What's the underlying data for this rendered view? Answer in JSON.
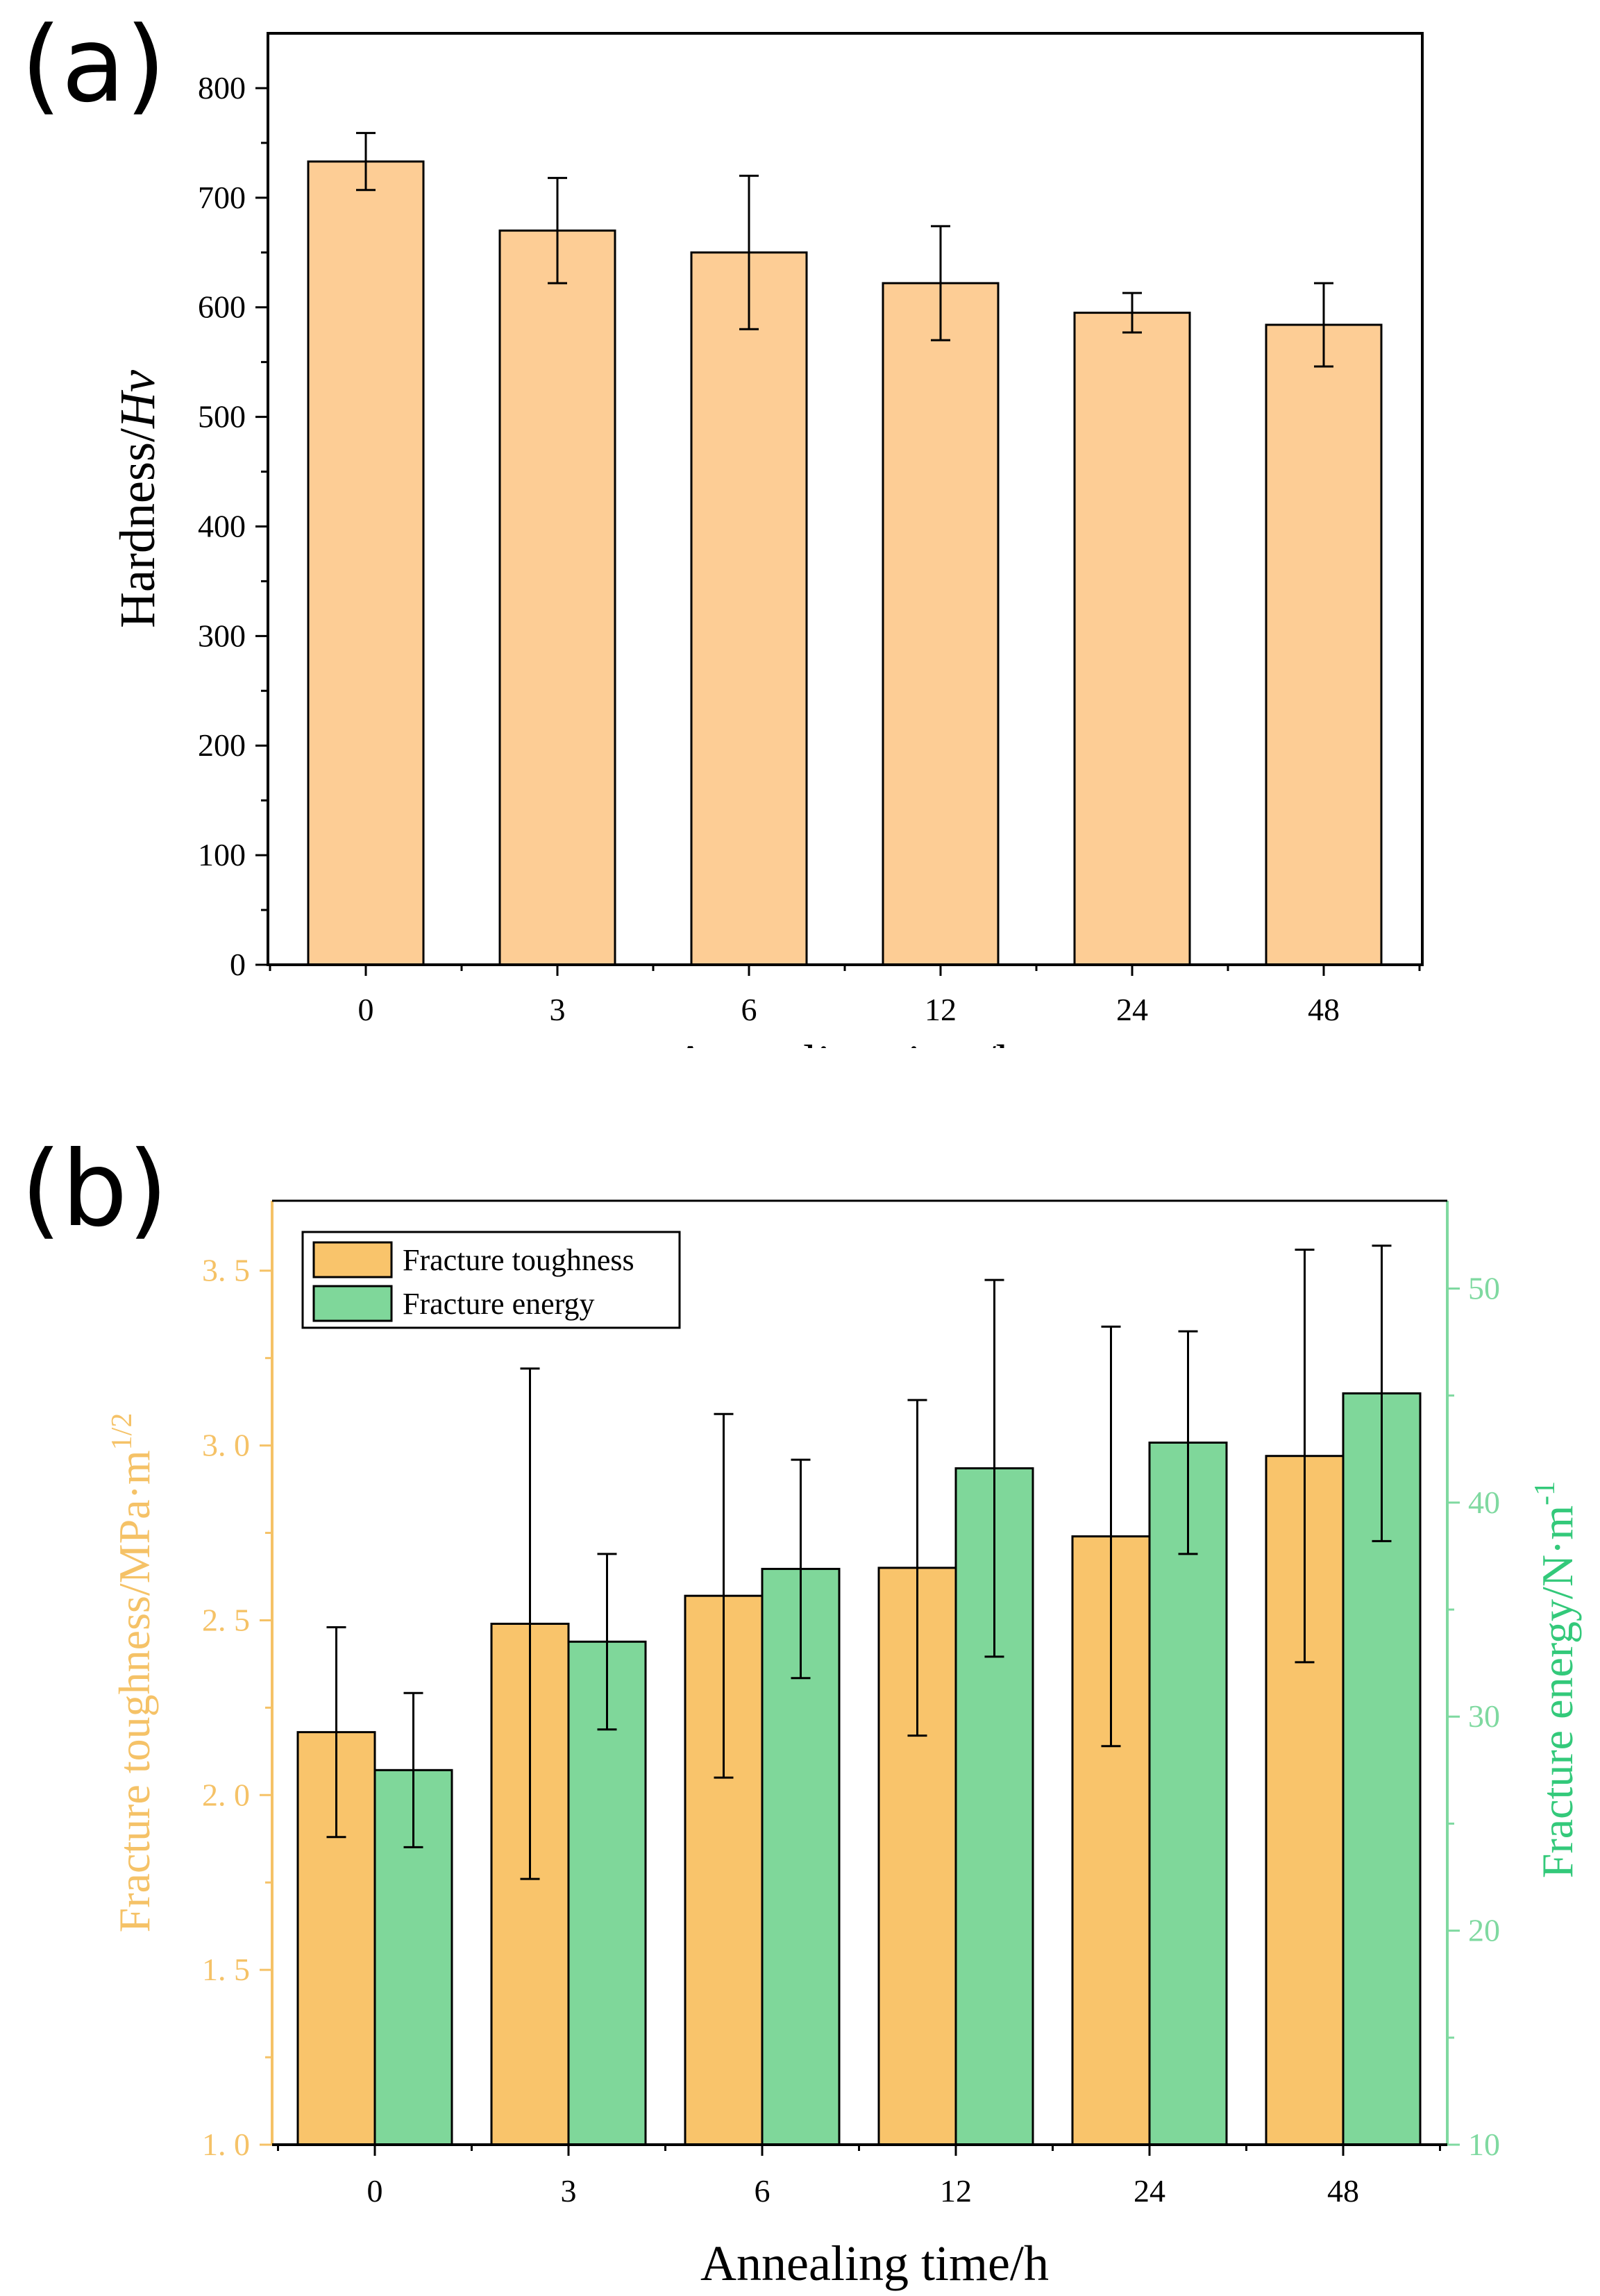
{
  "chart_data": [
    {
      "panel": "(a)",
      "type": "bar",
      "categories": [
        "0",
        "3",
        "6",
        "12",
        "24",
        "48"
      ],
      "values": [
        733,
        670,
        650,
        622,
        595,
        584
      ],
      "errors": [
        26,
        48,
        70,
        52,
        18,
        38
      ],
      "ylabel_main": "Hardness/",
      "ylabel_italic": "Hv",
      "xlabel": "Annealing time/h",
      "ylim": [
        0,
        850
      ],
      "yticks": [
        "0",
        "100",
        "200",
        "300",
        "400",
        "500",
        "600",
        "700",
        "800"
      ],
      "bar_color": "#fdcd95"
    },
    {
      "panel": "(b)",
      "type": "bar",
      "categories": [
        "0",
        "3",
        "6",
        "12",
        "24",
        "48"
      ],
      "xlabel": "Annealing time/h",
      "series": [
        {
          "name": "Fracture toughness",
          "axis": "left",
          "values": [
            2.18,
            2.49,
            2.57,
            2.65,
            2.74,
            2.97
          ],
          "errors": [
            0.3,
            0.73,
            0.52,
            0.48,
            0.6,
            0.59
          ],
          "color": "#f9c46b"
        },
        {
          "name": "Fracture energy",
          "axis": "right",
          "values": [
            27.5,
            33.5,
            36.9,
            41.6,
            42.8,
            45.1
          ],
          "errors": [
            3.6,
            4.1,
            5.1,
            8.8,
            5.2,
            6.9
          ],
          "color": "#7fd79a"
        }
      ],
      "ylabel_left": "Fracture toughness/MPa·m",
      "ylabel_left_sup": "1/2",
      "ylabel_right": "Fracture energy/N·m",
      "ylabel_right_sup": "-1",
      "ylim_left": [
        1.0,
        3.7
      ],
      "ylim_right": [
        10,
        54.1
      ],
      "yticks_left": [
        "1. 0",
        "1. 5",
        "2. 0",
        "2. 5",
        "3. 0",
        "3. 5"
      ],
      "yticks_right": [
        "10",
        "20",
        "30",
        "40",
        "50"
      ],
      "left_axis_color": "#f5c267",
      "right_axis_color": "#7fd9a0",
      "legend_position": "top-left"
    }
  ],
  "labels": {
    "panel_a": "(a)",
    "panel_b": "(b)"
  }
}
